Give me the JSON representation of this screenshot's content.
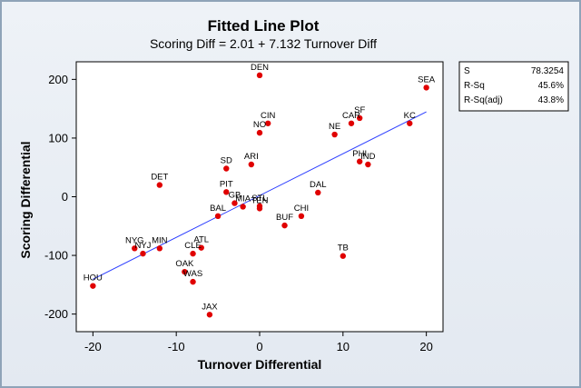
{
  "chart_data": {
    "type": "scatter",
    "title": "Fitted Line Plot",
    "subtitle": "Scoring Diff =  2.01 + 7.132 Turnover Diff",
    "xlabel": "Turnover Differential",
    "ylabel": "Scoring Differential",
    "xlim": [
      -22,
      22
    ],
    "ylim": [
      -230,
      230
    ],
    "xticks": [
      -20,
      -10,
      0,
      10,
      20
    ],
    "yticks": [
      -200,
      -100,
      0,
      100,
      200
    ],
    "fit": {
      "intercept": 2.01,
      "slope": 7.132,
      "x_range": [
        -20,
        20
      ]
    },
    "point_color": "#e00000",
    "line_color": "#2a3cff",
    "points": [
      {
        "label": "DEN",
        "x": 0,
        "y": 207
      },
      {
        "label": "SEA",
        "x": 20,
        "y": 186
      },
      {
        "label": "SF",
        "x": 12,
        "y": 134
      },
      {
        "label": "CAR",
        "x": 11,
        "y": 125
      },
      {
        "label": "CIN",
        "x": 1,
        "y": 125
      },
      {
        "label": "KC",
        "x": 18,
        "y": 125
      },
      {
        "label": "NO",
        "x": 0,
        "y": 109
      },
      {
        "label": "NE",
        "x": 9,
        "y": 106
      },
      {
        "label": "PHI",
        "x": 12,
        "y": 60
      },
      {
        "label": "IND",
        "x": 13,
        "y": 55
      },
      {
        "label": "ARI",
        "x": -1,
        "y": 55
      },
      {
        "label": "SD",
        "x": -4,
        "y": 48
      },
      {
        "label": "DET",
        "x": -12,
        "y": 20
      },
      {
        "label": "PIT",
        "x": -4,
        "y": 8
      },
      {
        "label": "DAL",
        "x": 7,
        "y": 7
      },
      {
        "label": "GB",
        "x": -3,
        "y": -11
      },
      {
        "label": "MIA",
        "x": -2,
        "y": -17
      },
      {
        "label": "STL",
        "x": 0,
        "y": -16
      },
      {
        "label": "TEN",
        "x": 0,
        "y": -20
      },
      {
        "label": "BAL",
        "x": -5,
        "y": -33
      },
      {
        "label": "CHI",
        "x": 5,
        "y": -33
      },
      {
        "label": "BUF",
        "x": 3,
        "y": -49
      },
      {
        "label": "NYG",
        "x": -15,
        "y": -88
      },
      {
        "label": "MIN",
        "x": -12,
        "y": -88
      },
      {
        "label": "ATL",
        "x": -7,
        "y": -87
      },
      {
        "label": "NYJ",
        "x": -14,
        "y": -97
      },
      {
        "label": "CLE",
        "x": -8,
        "y": -97
      },
      {
        "label": "TB",
        "x": 10,
        "y": -101
      },
      {
        "label": "OAK",
        "x": -9,
        "y": -128
      },
      {
        "label": "WAS",
        "x": -8,
        "y": -145
      },
      {
        "label": "HOU",
        "x": -20,
        "y": -152
      },
      {
        "label": "JAX",
        "x": -6,
        "y": -201
      }
    ]
  },
  "stats": {
    "rows": [
      {
        "name": "S",
        "value": "78.3254"
      },
      {
        "name": "R-Sq",
        "value": "45.6%"
      },
      {
        "name": "R-Sq(adj)",
        "value": "43.8%"
      }
    ]
  }
}
